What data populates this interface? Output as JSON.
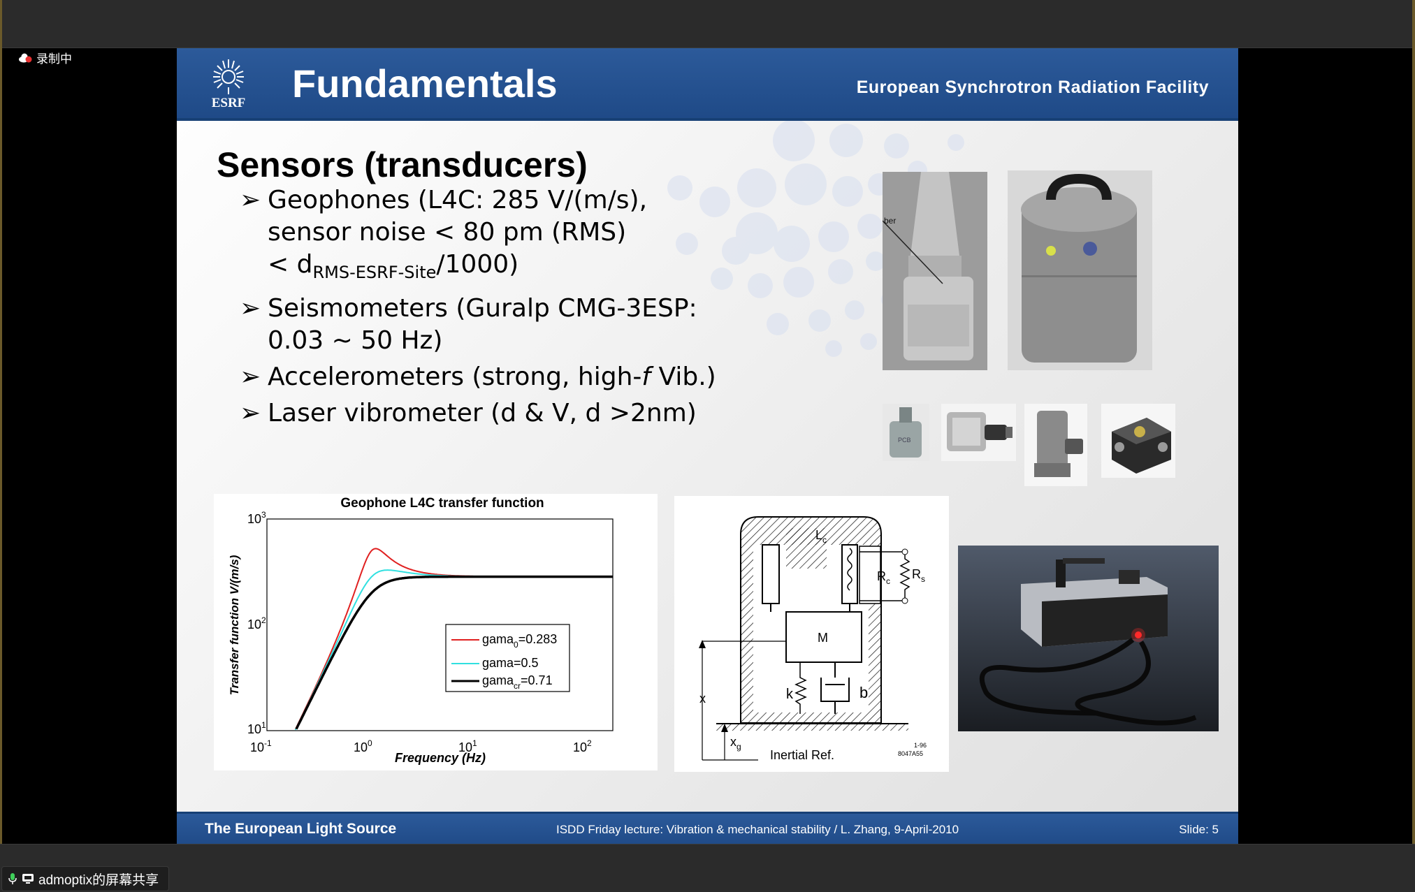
{
  "app": {
    "recording_label": "录制中",
    "share_label": "admoptix的屏幕共享"
  },
  "slide": {
    "logo_text": "ESRF",
    "title": "Fundamentals",
    "facility": "European Synchrotron Radiation Facility",
    "heading": "Sensors (transducers)",
    "bullets": {
      "b1_l1": "Geophones (L4C: 285 V/(m/s),",
      "b1_l2": "sensor noise < 80 pm (RMS)",
      "b1_l3_pre": "< d",
      "b1_l3_sub": "RMS-ESRF-Site",
      "b1_l3_post": "/1000)",
      "b2_l1": "Seismometers (Guralp CMG-3ESP:",
      "b2_l2": "0.03 ~ 50 Hz)",
      "b3_pre": "Accelerometers (strong, high-",
      "b3_f": "f",
      "b3_post": " Vib.)",
      "b4": "Laser vibrometer (d & V, d >2nm)"
    },
    "photo_label": "ber",
    "accel_label": "PCB",
    "footer_left": "The European Light Source",
    "footer_mid": "ISDD Friday lecture: Vibration & mechanical stability / L. Zhang,  9-April-2010",
    "footer_right": "Slide: 5"
  },
  "plot": {
    "title": "Geophone L4C transfer function",
    "xlabel": "Frequency (Hz)",
    "ylabel": "Transfer function V/(m/s)",
    "xtick_1": "10",
    "xtick_1_exp": "-1",
    "xtick_2": "10",
    "xtick_2_exp": "0",
    "xtick_3": "10",
    "xtick_3_exp": "1",
    "xtick_4": "10",
    "xtick_4_exp": "2",
    "ytick_1": "10",
    "ytick_1_exp": "1",
    "ytick_2": "10",
    "ytick_2_exp": "2",
    "ytick_3": "10",
    "ytick_3_exp": "3",
    "legend_1_pre": "gama",
    "legend_1_sub": "0",
    "legend_1_post": "=0.283",
    "legend_2": "gama=0.5",
    "legend_3_pre": "gama",
    "legend_3_sub": "cr",
    "legend_3_post": "=0.71"
  },
  "chart_data": {
    "type": "line",
    "title": "Geophone L4C transfer function",
    "xlabel": "Frequency (Hz)",
    "ylabel": "Transfer function V/(m/s)",
    "x_scale": "log",
    "y_scale": "log",
    "xlim": [
      0.1,
      200
    ],
    "ylim": [
      10,
      1000
    ],
    "natural_frequency_hz": 1.0,
    "sensitivity": 285,
    "series": [
      {
        "name": "gama0=0.283",
        "damping": 0.283,
        "color": "#e02020",
        "x": [
          0.2,
          0.5,
          0.8,
          1.0,
          1.2,
          2,
          5,
          10,
          50,
          200
        ],
        "y": [
          10,
          67,
          242,
          504,
          449,
          359,
          299,
          290,
          286,
          285
        ]
      },
      {
        "name": "gama=0.5",
        "damping": 0.5,
        "color": "#30e0e0",
        "x": [
          0.2,
          0.5,
          0.8,
          1.0,
          1.2,
          2,
          5,
          10,
          50,
          200
        ],
        "y": [
          10,
          59,
          172,
          285,
          306,
          272,
          252,
          249,
          246,
          245
        ]
      },
      {
        "name": "gamacr=0.71",
        "damping": 0.71,
        "color": "#000000",
        "x": [
          0.25,
          0.5,
          0.8,
          1.0,
          1.2,
          2,
          5,
          10,
          50,
          200
        ],
        "y": [
          10,
          42,
          126,
          183,
          219,
          242,
          246,
          246,
          246,
          246
        ]
      }
    ],
    "legend": "center-right",
    "grid": false
  },
  "schematic": {
    "lc": "L",
    "lc_sub": "c",
    "rc": "R",
    "rc_sub": "c",
    "rs": "R",
    "rs_sub": "s",
    "mass": "M",
    "k": "k",
    "b": "b",
    "x": "x",
    "xg": "x",
    "xg_sub": "g",
    "inertial": "Inertial Ref.",
    "code1": "1-96",
    "code2": "8047A55"
  }
}
